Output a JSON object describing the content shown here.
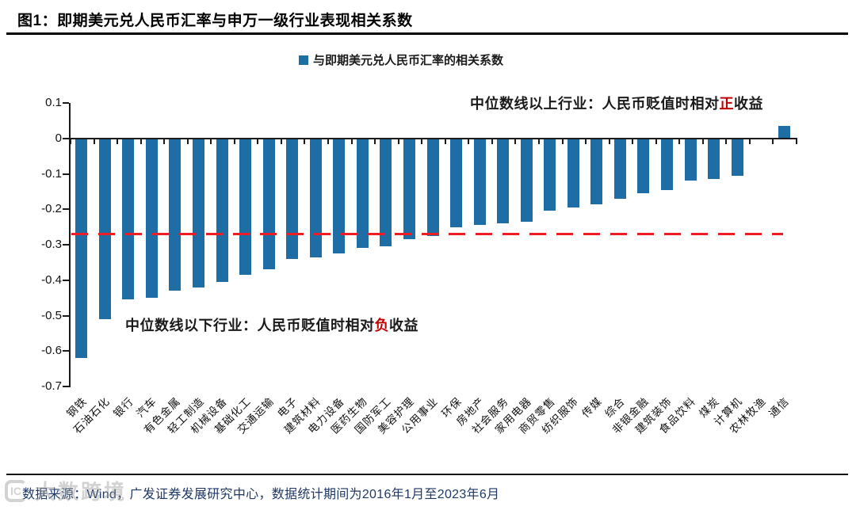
{
  "header": {
    "title": "图1：即期美元兑人民币汇率与申万一级行业表现相关系数"
  },
  "legend": {
    "label": "与即期美元兑人民币汇率的相关系数"
  },
  "annotations": {
    "above": {
      "prefix": "中位数线以上行业：人民币贬值时相对",
      "highlight": "正",
      "suffix": "收益"
    },
    "below": {
      "prefix": "中位数线以下行业：人民币贬值时相对",
      "highlight": "负",
      "suffix": "收益"
    }
  },
  "footer": {
    "source": "数据来源：Wind，广发证券发展研究中心，数据统计期间为2016年1月至2023年6月"
  },
  "watermark": {
    "logo": "IC",
    "text": "大数跨境"
  },
  "colors": {
    "bar": "#1e6ea5",
    "median_line": "#ee1c25",
    "highlight_red": "#c00000",
    "source_text": "#1f3864"
  },
  "chart_data": {
    "type": "bar",
    "title": "即期美元兑人民币汇率与申万一级行业表现相关系数",
    "legend_entries": [
      "与即期美元兑人民币汇率的相关系数"
    ],
    "legend_position": "top",
    "grid": false,
    "xlabel": "",
    "ylabel": "",
    "ylim": [
      -0.7,
      0.1
    ],
    "yticks": [
      0.1,
      0,
      -0.1,
      -0.2,
      -0.3,
      -0.4,
      -0.5,
      -0.6,
      -0.7
    ],
    "ytick_labels": [
      "0.1",
      "0",
      "-0.1",
      "-0.2",
      "-0.3",
      "-0.4",
      "-0.5",
      "-0.6",
      "-0.7"
    ],
    "median_line": -0.27,
    "categories": [
      "钢铁",
      "石油石化",
      "银行",
      "汽车",
      "有色金属",
      "轻工制造",
      "机械设备",
      "基础化工",
      "交通运输",
      "电子",
      "建筑材料",
      "电力设备",
      "医药生物",
      "国防军工",
      "美容护理",
      "公用事业",
      "环保",
      "房地产",
      "社会服务",
      "家用电器",
      "商贸零售",
      "纺织服饰",
      "传媒",
      "综合",
      "非银金融",
      "建筑装饰",
      "食品饮料",
      "煤炭",
      "计算机",
      "农林牧渔",
      "通信"
    ],
    "values": [
      -0.62,
      -0.51,
      -0.455,
      -0.45,
      -0.43,
      -0.42,
      -0.405,
      -0.385,
      -0.37,
      -0.34,
      -0.335,
      -0.325,
      -0.31,
      -0.305,
      -0.285,
      -0.275,
      -0.25,
      -0.245,
      -0.24,
      -0.235,
      -0.205,
      -0.195,
      -0.185,
      -0.17,
      -0.155,
      -0.145,
      -0.12,
      -0.115,
      -0.105,
      0,
      0.035
    ]
  }
}
